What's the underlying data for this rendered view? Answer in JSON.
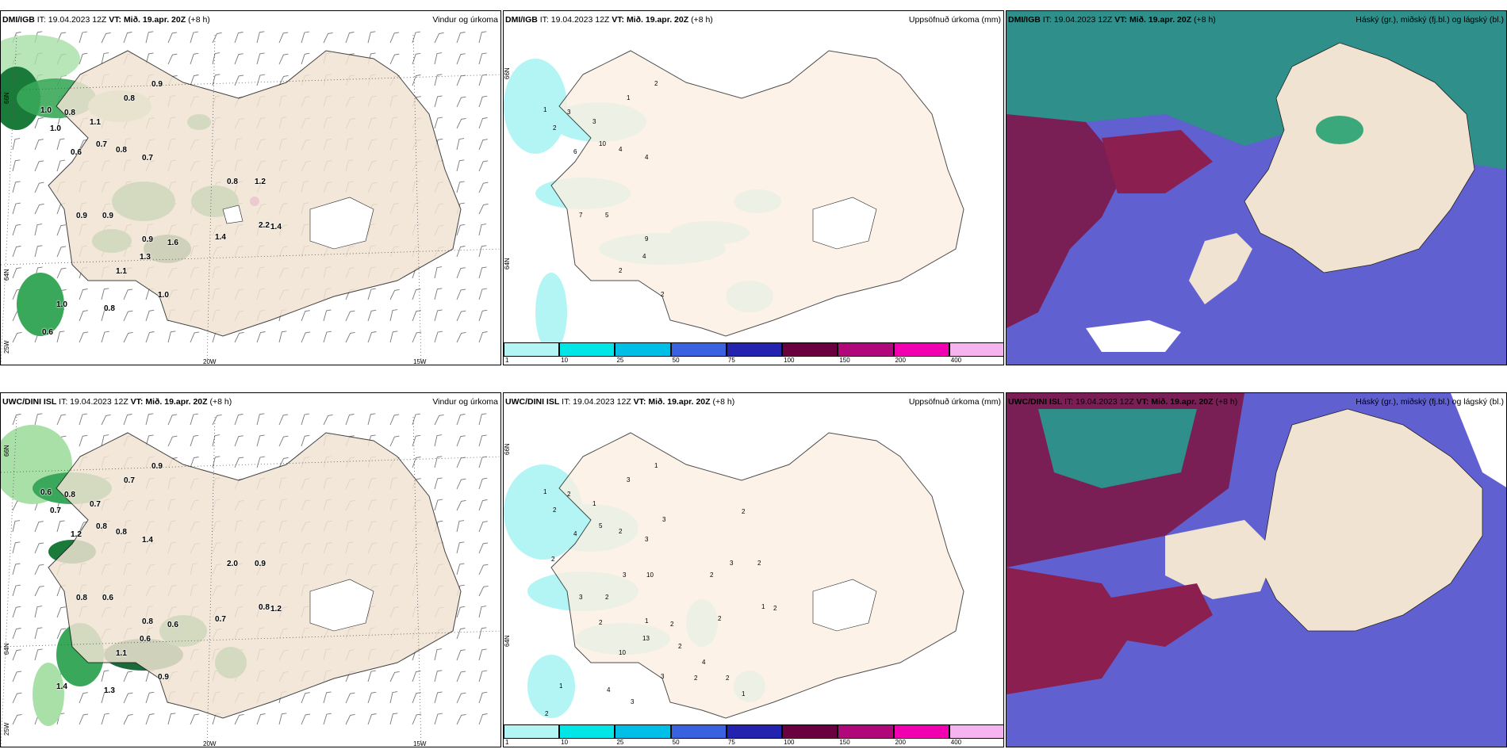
{
  "panels": {
    "p1": {
      "model": "DMI/IGB",
      "it": "IT: 19.04.2023 12Z",
      "vt_label": "VT:",
      "vt": "Mið. 19.apr. 20Z",
      "lead": "(+8 h)",
      "title": "Vindur og úrkoma"
    },
    "p2": {
      "model": "DMI/IGB",
      "it": "IT: 19.04.2023 12Z",
      "vt_label": "VT:",
      "vt": "Mið. 19.apr. 20Z",
      "lead": "(+8 h)",
      "title": "Uppsöfnuð úrkoma (mm)"
    },
    "p3": {
      "model": "DMI/IGB",
      "it": "IT: 19.04.2023 12Z",
      "vt_label": "VT:",
      "vt": "Mið. 19.apr. 20Z",
      "lead": "(+8 h)",
      "title": "Háský (gr.), miðský (fj.bl.) og lágský (bl.)"
    },
    "p4": {
      "model": "UWC/DINI ISL",
      "it": "IT: 19.04.2023 12Z",
      "vt_label": "VT:",
      "vt": "Mið. 19.apr. 20Z",
      "lead": "(+8 h)",
      "title": "Vindur og úrkoma"
    },
    "p5": {
      "model": "UWC/DINI ISL",
      "it": "IT: 19.04.2023 12Z",
      "vt_label": "VT:",
      "vt": "Mið. 19.apr. 20Z",
      "lead": "(+8 h)",
      "title": "Uppsöfnuð úrkoma (mm)"
    },
    "p6": {
      "model": "UWC/DINI ISL",
      "it": "IT: 19.04.2023 12Z",
      "vt_label": "VT:",
      "vt": "Mið. 19.apr. 20Z",
      "lead": "(+8 h)",
      "title": "Háský (gr.), miðský (fj.bl.) og lágský (bl.)"
    }
  },
  "grid_labels": {
    "lat66": "66N",
    "lat64": "64N",
    "lat25w": "25W",
    "lon20w": "20W",
    "lon15w": "15W"
  },
  "colorbar": {
    "ticks": [
      "1",
      "10",
      "25",
      "50",
      "75",
      "100",
      "150",
      "200",
      "400"
    ],
    "colors": [
      "#b3f5f5",
      "#00e5e5",
      "#00bfe6",
      "#3a62e0",
      "#2323b0",
      "#6b0040",
      "#b0087a",
      "#f000b0",
      "#f5b3f0"
    ]
  },
  "wind_precip_top": [
    "0.9",
    "1.0",
    "0.8",
    "1.1",
    "0.8",
    "1.0",
    "0.7",
    "0.6",
    "0.8",
    "0.7",
    "0.9",
    "0.9",
    "0.9",
    "1.3",
    "1.1",
    "1.0",
    "1.0",
    "0.8",
    "0.8",
    "1.2",
    "1.4",
    "1.4",
    "1.6",
    "2.2",
    "0.6"
  ],
  "wind_precip_bottom": [
    "0.9",
    "0.6",
    "0.8",
    "0.7",
    "0.7",
    "0.7",
    "0.8",
    "1.2",
    "0.8",
    "1.4",
    "0.8",
    "0.6",
    "0.8",
    "0.6",
    "1.1",
    "0.9",
    "1.4",
    "1.3",
    "2.0",
    "0.9",
    "1.2",
    "0.7",
    "0.6",
    "0.8"
  ],
  "accum_top": [
    "2",
    "1",
    "3",
    "3",
    "1",
    "2",
    "10",
    "6",
    "4",
    "4",
    "7",
    "5",
    "9",
    "4",
    "2",
    "2"
  ],
  "accum_bottom": [
    "1",
    "1",
    "2",
    "1",
    "3",
    "2",
    "5",
    "4",
    "2",
    "3",
    "3",
    "2",
    "1",
    "13",
    "10",
    "3",
    "1",
    "4",
    "3",
    "2",
    "2",
    "2",
    "2",
    "1",
    "2",
    "2",
    "2",
    "2",
    "10",
    "2",
    "3",
    "2",
    "1",
    "2",
    "2",
    "3",
    "4",
    "3"
  ]
}
